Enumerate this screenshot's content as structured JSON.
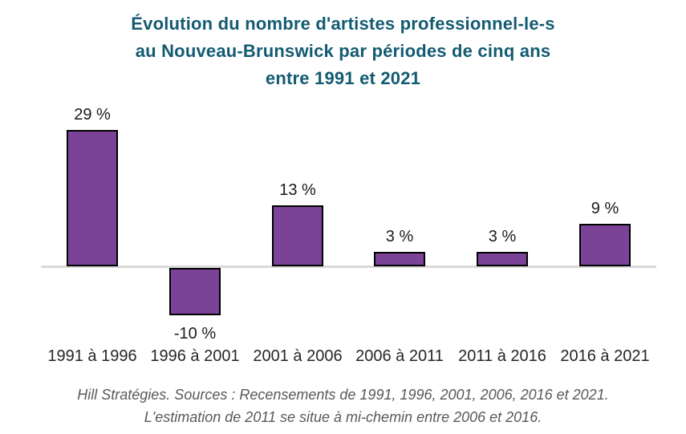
{
  "title": {
    "line1": "Évolution du nombre d'artistes professionnel-le-s",
    "line2": "au Nouveau-Brunswick par périodes de cinq ans",
    "line3": "entre 1991 et 2021"
  },
  "chart_data": {
    "type": "bar",
    "categories": [
      "1991 à 1996",
      "1996 à 2001",
      "2001 à 2006",
      "2006 à 2011",
      "2011 à 2016",
      "2016 à 2021"
    ],
    "values": [
      29,
      -10,
      13,
      3,
      3,
      9
    ],
    "value_labels": [
      "29 %",
      "-10 %",
      "13 %",
      "3 %",
      "3 %",
      "9 %"
    ],
    "unit": "%",
    "title": "Évolution du nombre d'artistes professionnel-le-s au Nouveau-Brunswick par périodes de cinq ans entre 1991 et 2021",
    "xlabel": "",
    "ylabel": "",
    "ylim": [
      -15,
      33
    ],
    "grid": false,
    "legend": "none",
    "bar_color": "#7B4397",
    "bar_border_color": "#000000",
    "axis_color": "#D9D9D9"
  },
  "footer": {
    "line1": "Hill Stratégies. Sources : Recensements de 1991, 1996, 2001, 2006, 2016 et 2021.",
    "line2": "L'estimation de 2011 se situe à mi-chemin entre 2006 et 2016."
  },
  "colors": {
    "title": "#135B72",
    "value_label": "#1A1A1A",
    "category_label": "#262626",
    "footer": "#595959",
    "background": "#FFFFFF"
  }
}
